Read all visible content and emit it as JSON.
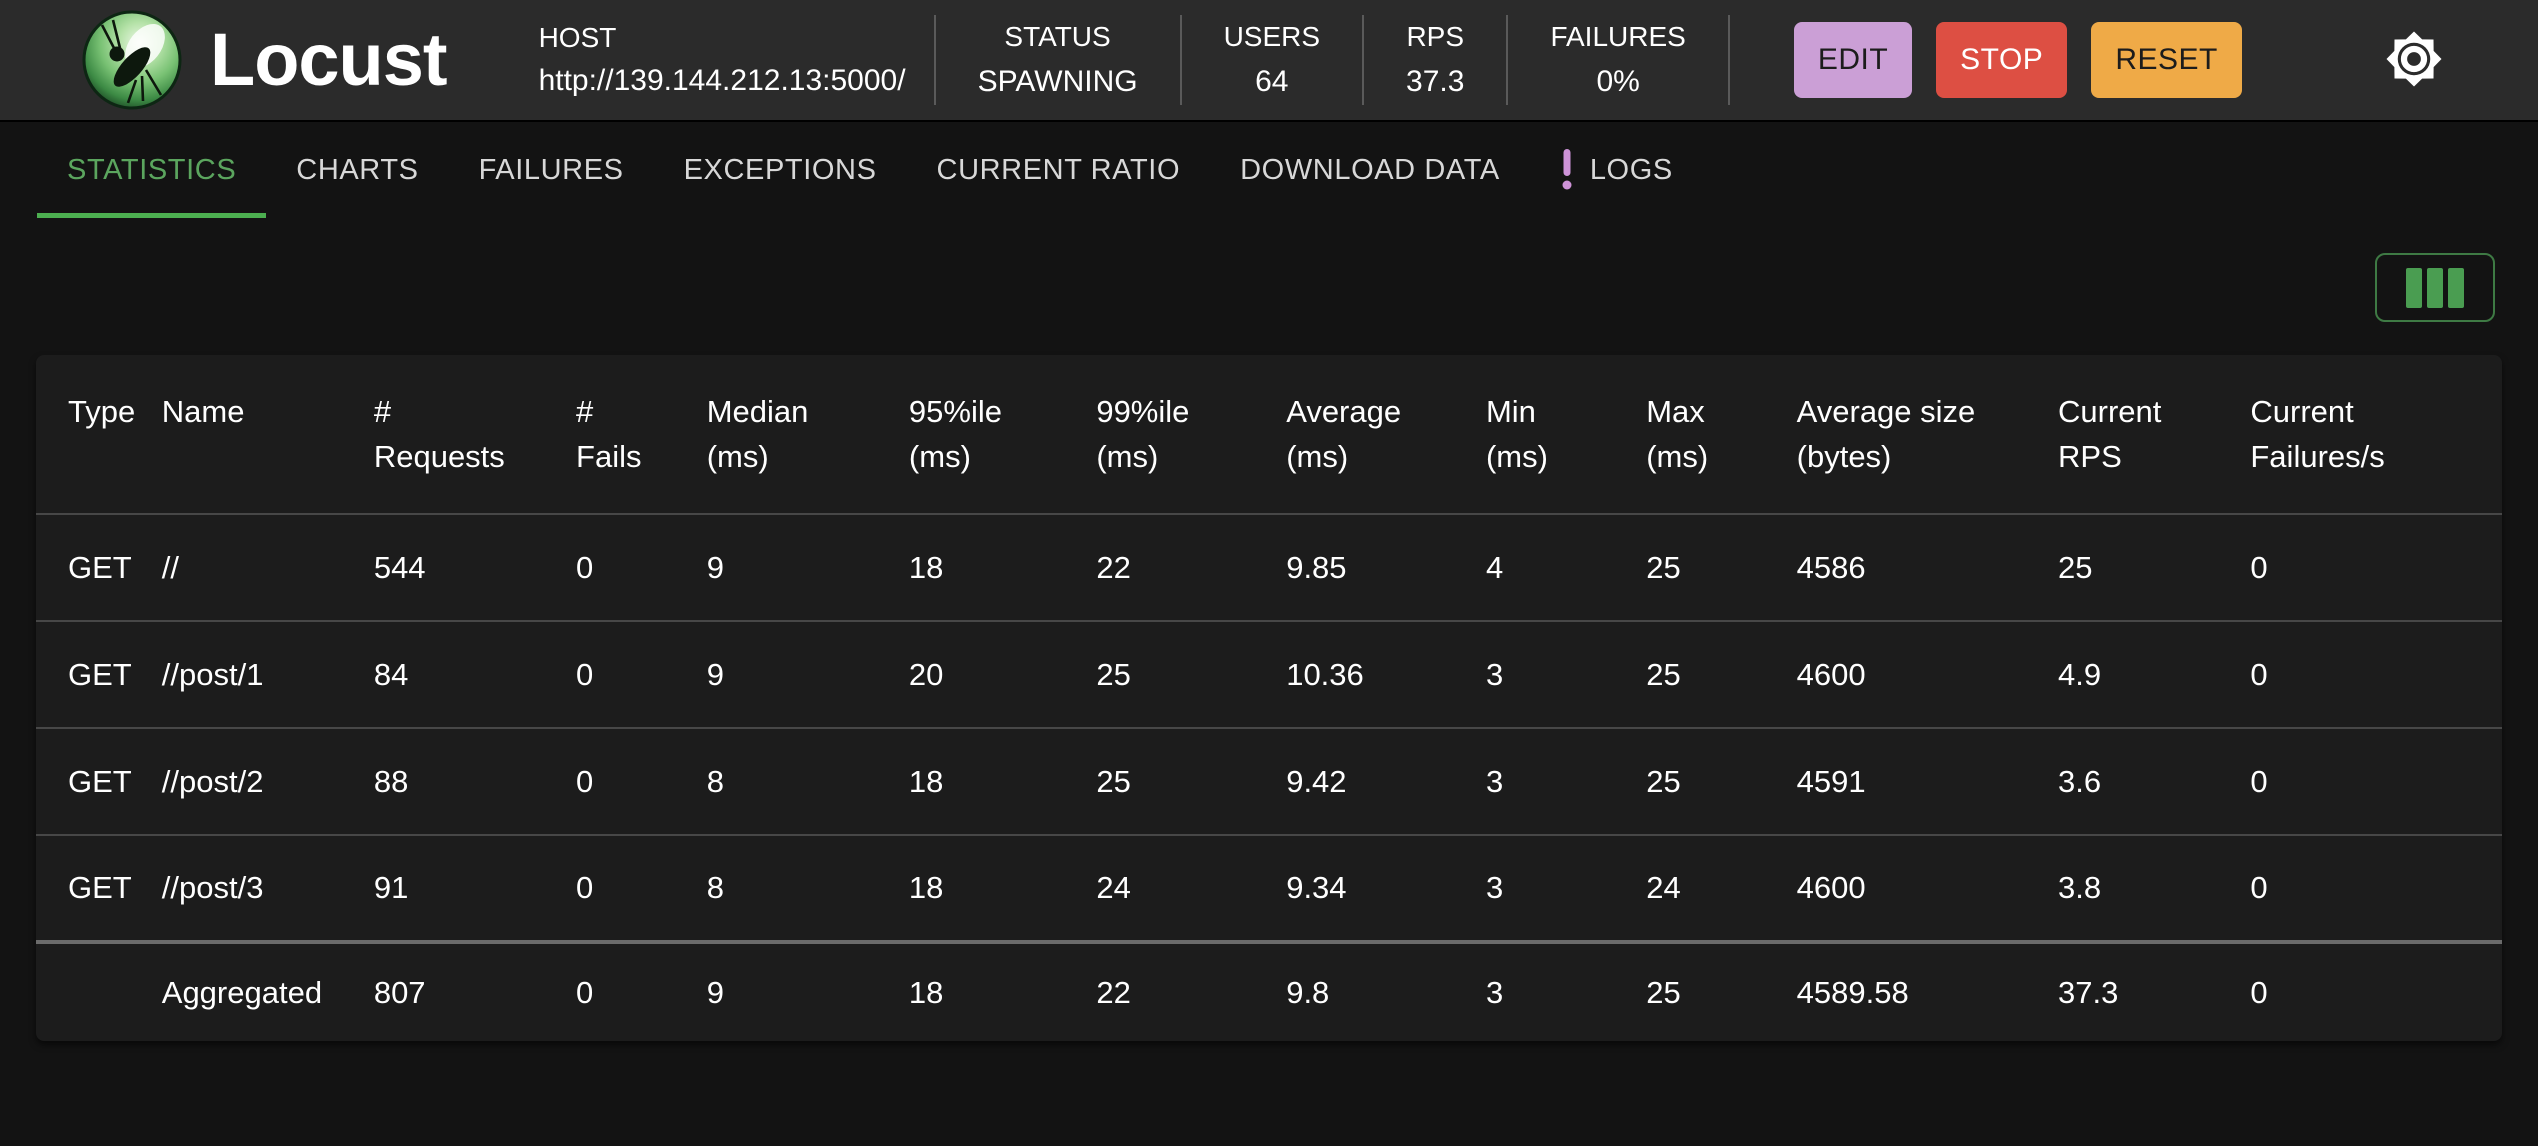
{
  "brand": {
    "name": "Locust"
  },
  "topbar": {
    "host": {
      "label": "HOST",
      "value": "http://139.144.212.13:5000/"
    },
    "stats": [
      {
        "label": "STATUS",
        "value": "SPAWNING"
      },
      {
        "label": "USERS",
        "value": "64"
      },
      {
        "label": "RPS",
        "value": "37.3"
      },
      {
        "label": "FAILURES",
        "value": "0%"
      }
    ],
    "actions": [
      {
        "label": "EDIT"
      },
      {
        "label": "STOP"
      },
      {
        "label": "RESET"
      }
    ]
  },
  "colors": {
    "accent_green": "#4caf50",
    "tab_active_green": "#5ba55e",
    "edit_purple": "#cb9fd6",
    "stop_red": "#dd4f43",
    "reset_orange": "#efaa47",
    "logs_badge_purple": "#ce93d8",
    "topbar_bg": "#2b2b2b",
    "page_bg": "#131313",
    "panel_bg": "#1c1c1c"
  },
  "tabs": [
    {
      "label": "STATISTICS",
      "active": true
    },
    {
      "label": "CHARTS",
      "active": false
    },
    {
      "label": "FAILURES",
      "active": false
    },
    {
      "label": "EXCEPTIONS",
      "active": false
    },
    {
      "label": "CURRENT RATIO",
      "active": false
    },
    {
      "label": "DOWNLOAD DATA",
      "active": false
    },
    {
      "label": "LOGS",
      "active": false,
      "badge": "!"
    }
  ],
  "table": {
    "columns": [
      {
        "line1": "Type",
        "line2": ""
      },
      {
        "line1": "Name",
        "line2": ""
      },
      {
        "line1": "#",
        "line2": "Requests"
      },
      {
        "line1": "#",
        "line2": "Fails"
      },
      {
        "line1": "Median",
        "line2": "(ms)"
      },
      {
        "line1": "95%ile",
        "line2": "(ms)"
      },
      {
        "line1": "99%ile",
        "line2": "(ms)"
      },
      {
        "line1": "Average",
        "line2": "(ms)"
      },
      {
        "line1": "Min",
        "line2": "(ms)"
      },
      {
        "line1": "Max",
        "line2": "(ms)"
      },
      {
        "line1": "Average size",
        "line2": "(bytes)"
      },
      {
        "line1": "Current",
        "line2": "RPS"
      },
      {
        "line1": "Current",
        "line2": "Failures/s"
      }
    ],
    "rows": [
      {
        "cells": [
          "GET",
          "//",
          "544",
          "0",
          "9",
          "18",
          "22",
          "9.85",
          "4",
          "25",
          "4586",
          "25",
          "0"
        ]
      },
      {
        "cells": [
          "GET",
          "//post/1",
          "84",
          "0",
          "9",
          "20",
          "25",
          "10.36",
          "3",
          "25",
          "4600",
          "4.9",
          "0"
        ]
      },
      {
        "cells": [
          "GET",
          "//post/2",
          "88",
          "0",
          "8",
          "18",
          "25",
          "9.42",
          "3",
          "25",
          "4591",
          "3.6",
          "0"
        ]
      },
      {
        "cells": [
          "GET",
          "//post/3",
          "91",
          "0",
          "8",
          "18",
          "24",
          "9.34",
          "3",
          "24",
          "4600",
          "3.8",
          "0"
        ]
      },
      {
        "cells": [
          "",
          "Aggregated",
          "807",
          "0",
          "9",
          "18",
          "22",
          "9.8",
          "3",
          "25",
          "4589.58",
          "37.3",
          "0"
        ],
        "aggregated": true
      }
    ]
  }
}
